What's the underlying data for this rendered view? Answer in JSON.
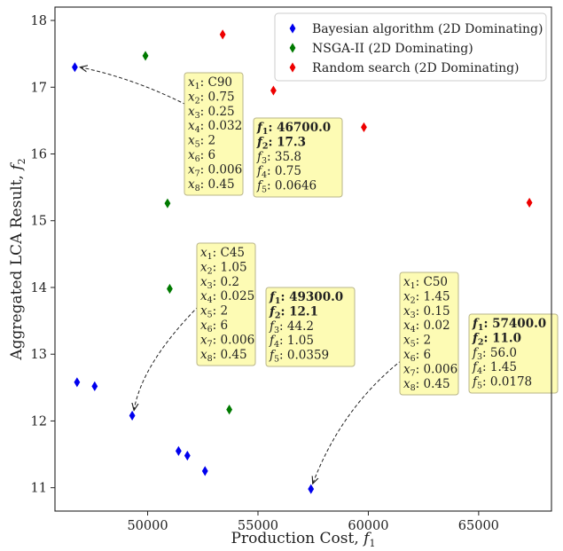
{
  "chart_data": {
    "type": "scatter",
    "xlabel": "Production Cost, ",
    "xlabel_sym": "f",
    "xlabel_sub": "1",
    "ylabel": "Aggregated LCA Result, ",
    "ylabel_sym": "f",
    "ylabel_sub": "2",
    "xlim": [
      45800,
      68300
    ],
    "ylim": [
      10.65,
      18.2
    ],
    "x_ticks": [
      50000,
      55000,
      60000,
      65000
    ],
    "y_ticks": [
      11,
      12,
      13,
      14,
      15,
      16,
      17,
      18
    ],
    "grid": false,
    "legend_position": "top-right",
    "series": [
      {
        "name": "Bayesian algorithm (2D Dominating)",
        "color": "#0000ee",
        "points": [
          [
            46700,
            17.3
          ],
          [
            46800,
            12.58
          ],
          [
            47600,
            12.52
          ],
          [
            49300,
            12.08
          ],
          [
            51400,
            11.55
          ],
          [
            51800,
            11.48
          ],
          [
            52600,
            11.25
          ],
          [
            57400,
            10.98
          ]
        ]
      },
      {
        "name": "NSGA-II (2D Dominating)",
        "color": "#007a00",
        "points": [
          [
            49900,
            17.47
          ],
          [
            50900,
            15.26
          ],
          [
            51000,
            13.98
          ],
          [
            53700,
            12.17
          ]
        ]
      },
      {
        "name": "Random search (2D Dominating)",
        "color": "#ee0000",
        "points": [
          [
            53400,
            17.79
          ],
          [
            55700,
            16.95
          ],
          [
            59800,
            16.4
          ],
          [
            67300,
            15.27
          ]
        ]
      }
    ],
    "annotations": [
      {
        "target": [
          46700,
          17.3
        ],
        "params": [
          {
            "sym": "x",
            "sub": "1",
            "val": "C90"
          },
          {
            "sym": "x",
            "sub": "2",
            "val": "0.75"
          },
          {
            "sym": "x",
            "sub": "3",
            "val": "0.25"
          },
          {
            "sym": "x",
            "sub": "4",
            "val": "0.032"
          },
          {
            "sym": "x",
            "sub": "5",
            "val": "2"
          },
          {
            "sym": "x",
            "sub": "6",
            "val": "6"
          },
          {
            "sym": "x",
            "sub": "7",
            "val": "0.006"
          },
          {
            "sym": "x",
            "sub": "8",
            "val": "0.45"
          }
        ],
        "objectives": [
          {
            "sym": "f",
            "sub": "1",
            "val": "46700.0",
            "bold": true
          },
          {
            "sym": "f",
            "sub": "2",
            "val": "17.3",
            "bold": true
          },
          {
            "sym": "f",
            "sub": "3",
            "val": "35.8",
            "bold": false
          },
          {
            "sym": "f",
            "sub": "4",
            "val": "0.75",
            "bold": false
          },
          {
            "sym": "f",
            "sub": "5",
            "val": "0.0646",
            "bold": false
          }
        ]
      },
      {
        "target": [
          49300,
          12.08
        ],
        "params": [
          {
            "sym": "x",
            "sub": "1",
            "val": "C45"
          },
          {
            "sym": "x",
            "sub": "2",
            "val": "1.05"
          },
          {
            "sym": "x",
            "sub": "3",
            "val": "0.2"
          },
          {
            "sym": "x",
            "sub": "4",
            "val": "0.025"
          },
          {
            "sym": "x",
            "sub": "5",
            "val": "2"
          },
          {
            "sym": "x",
            "sub": "6",
            "val": "6"
          },
          {
            "sym": "x",
            "sub": "7",
            "val": "0.006"
          },
          {
            "sym": "x",
            "sub": "8",
            "val": "0.45"
          }
        ],
        "objectives": [
          {
            "sym": "f",
            "sub": "1",
            "val": "49300.0",
            "bold": true
          },
          {
            "sym": "f",
            "sub": "2",
            "val": "12.1",
            "bold": true
          },
          {
            "sym": "f",
            "sub": "3",
            "val": "44.2",
            "bold": false
          },
          {
            "sym": "f",
            "sub": "4",
            "val": "1.05",
            "bold": false
          },
          {
            "sym": "f",
            "sub": "5",
            "val": "0.0359",
            "bold": false
          }
        ]
      },
      {
        "target": [
          57400,
          10.98
        ],
        "params": [
          {
            "sym": "x",
            "sub": "1",
            "val": "C50"
          },
          {
            "sym": "x",
            "sub": "2",
            "val": "1.45"
          },
          {
            "sym": "x",
            "sub": "3",
            "val": "0.15"
          },
          {
            "sym": "x",
            "sub": "4",
            "val": "0.02"
          },
          {
            "sym": "x",
            "sub": "5",
            "val": "2"
          },
          {
            "sym": "x",
            "sub": "6",
            "val": "6"
          },
          {
            "sym": "x",
            "sub": "7",
            "val": "0.006"
          },
          {
            "sym": "x",
            "sub": "8",
            "val": "0.45"
          }
        ],
        "objectives": [
          {
            "sym": "f",
            "sub": "1",
            "val": "57400.0",
            "bold": true
          },
          {
            "sym": "f",
            "sub": "2",
            "val": "11.0",
            "bold": true
          },
          {
            "sym": "f",
            "sub": "3",
            "val": "56.0",
            "bold": false
          },
          {
            "sym": "f",
            "sub": "4",
            "val": "1.45",
            "bold": false
          },
          {
            "sym": "f",
            "sub": "5",
            "val": "0.0178",
            "bold": false
          }
        ]
      }
    ],
    "annotation_style": {
      "box_fill": "#fdfbb4",
      "box_stroke": "#b8b48a"
    }
  }
}
